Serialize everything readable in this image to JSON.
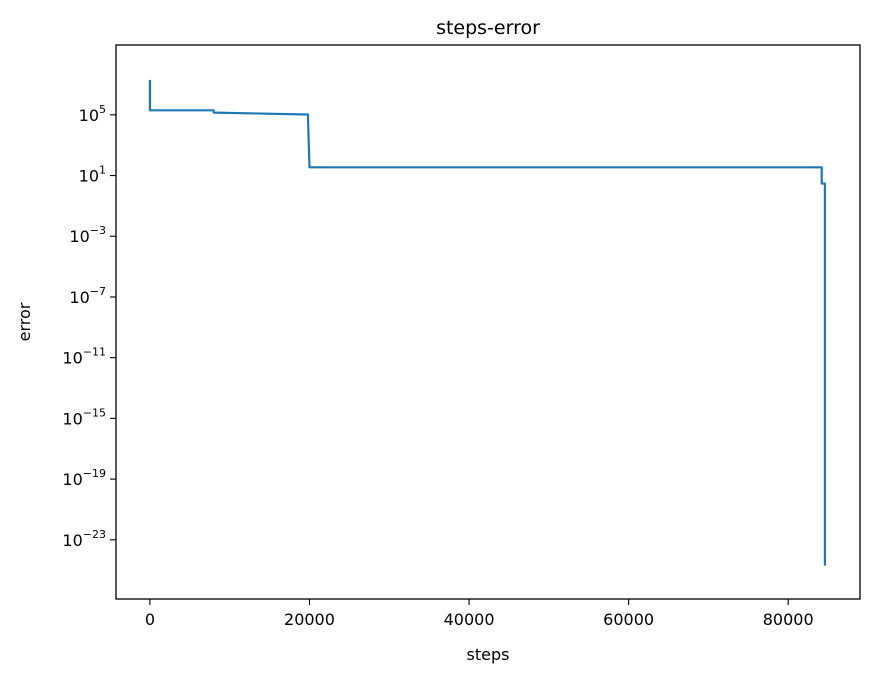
{
  "chart_data": {
    "type": "line",
    "title": "steps-error",
    "xlabel": "steps",
    "ylabel": "error",
    "yscale": "log",
    "grid": false,
    "xlim": [
      -4250,
      89000
    ],
    "ylim_exponent": [
      -26.9,
      9.6
    ],
    "x_ticks": [
      0,
      20000,
      40000,
      60000,
      80000
    ],
    "x_tick_labels": [
      "0",
      "20000",
      "40000",
      "60000",
      "80000"
    ],
    "y_tick_exponents": [
      5,
      1,
      -3,
      -7,
      -11,
      -15,
      -19,
      -23
    ],
    "series": [
      {
        "color": "#1f77b4",
        "points": [
          [
            0,
            20000000.0
          ],
          [
            0,
            200000.0
          ],
          [
            8000,
            200000.0
          ],
          [
            8000,
            140000.0
          ],
          [
            19800,
            105000.0
          ],
          [
            19800,
            90000.0
          ],
          [
            20000,
            35
          ],
          [
            84200,
            35
          ],
          [
            84200,
            3
          ],
          [
            84600,
            3
          ],
          [
            84600,
            2e-25
          ]
        ]
      }
    ]
  }
}
